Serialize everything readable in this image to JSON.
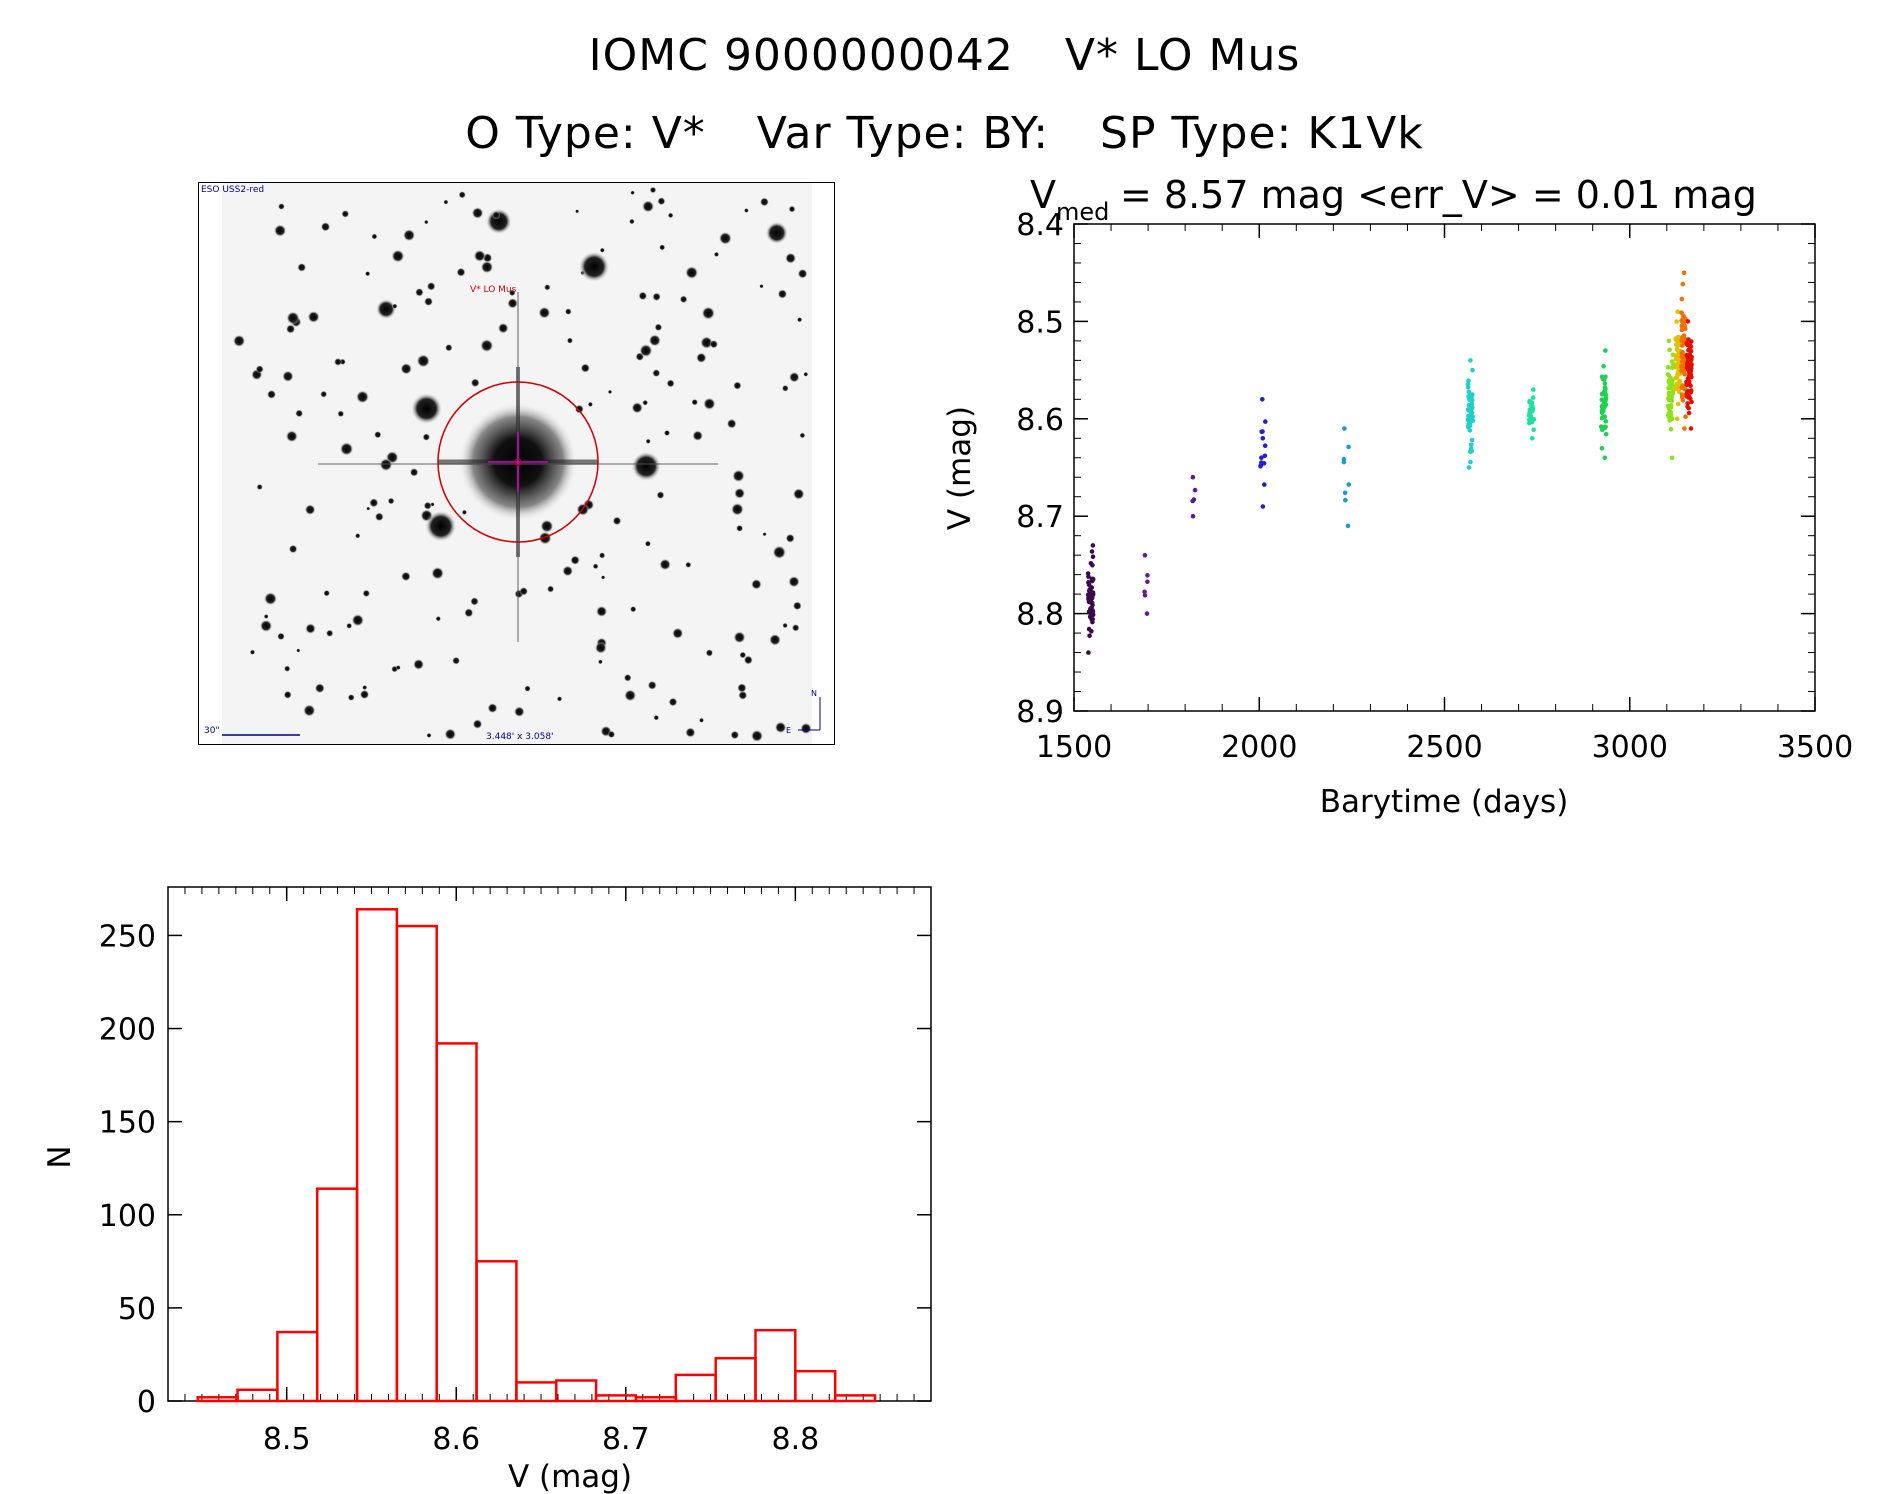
{
  "title": {
    "line1_id": "IOMC 9000000042",
    "line1_name": "V* LO Mus",
    "line2_otype": "O Type: V*",
    "line2_vartype": "Var Type: BY:",
    "line2_sptype": "SP Type: K1Vk"
  },
  "finder": {
    "survey_label": "ESO USS2-red",
    "target_label": "V* LO Mus",
    "scale_label": "30\"",
    "fov_label": "3.448' x 3.058'",
    "north_label": "N",
    "east_label": "E",
    "colors": {
      "circle": "#cc0000",
      "crosshair": "#cc00cc",
      "annotation": "#00008b"
    }
  },
  "chart_data": [
    {
      "type": "scatter",
      "title_v": "V",
      "title_sub": "med",
      "title_rest": "= 8.57 mag <err_V> = 0.01 mag",
      "xlabel": "Barytime (days)",
      "ylabel": "V (mag)",
      "xlim": [
        1500,
        3500
      ],
      "ylim": [
        8.9,
        8.4
      ],
      "y_inverted": true,
      "xticks": [
        "1500",
        "2000",
        "2500",
        "3000",
        "3500"
      ],
      "yticks": [
        "8.4",
        "8.5",
        "8.6",
        "8.7",
        "8.8",
        "8.9"
      ],
      "color_by": "time (rainbow: purple to red)",
      "clusters": [
        {
          "x": 1545,
          "y_min": 8.73,
          "y_max": 8.84,
          "n": 60,
          "color": "#3a0a4a"
        },
        {
          "x": 1695,
          "y_min": 8.74,
          "y_max": 8.8,
          "n": 6,
          "color": "#6a1a8a"
        },
        {
          "x": 1822,
          "y_min": 8.66,
          "y_max": 8.7,
          "n": 5,
          "color": "#5a1a9a"
        },
        {
          "x": 2010,
          "y_min": 8.58,
          "y_max": 8.69,
          "n": 14,
          "color": "#2020d0"
        },
        {
          "x": 2235,
          "y_min": 8.61,
          "y_max": 8.71,
          "n": 8,
          "color": "#1a9ad0"
        },
        {
          "x": 2570,
          "y_min": 8.54,
          "y_max": 8.65,
          "n": 50,
          "color": "#20d0c8"
        },
        {
          "x": 2735,
          "y_min": 8.57,
          "y_max": 8.62,
          "n": 30,
          "color": "#20e0a0"
        },
        {
          "x": 2930,
          "y_min": 8.53,
          "y_max": 8.64,
          "n": 50,
          "color": "#20d050"
        },
        {
          "x": 3110,
          "y_min": 8.52,
          "y_max": 8.64,
          "n": 50,
          "color": "#90e020"
        },
        {
          "x": 3130,
          "y_min": 8.49,
          "y_max": 8.6,
          "n": 50,
          "color": "#e0c000"
        },
        {
          "x": 3145,
          "y_min": 8.45,
          "y_max": 8.61,
          "n": 60,
          "color": "#f07000"
        },
        {
          "x": 3160,
          "y_min": 8.5,
          "y_max": 8.61,
          "n": 70,
          "color": "#e01000"
        }
      ]
    },
    {
      "type": "bar",
      "subtype": "histogram",
      "xlabel": "V (mag)",
      "ylabel": "N",
      "xlim": [
        8.43,
        8.88
      ],
      "ylim": [
        0,
        276
      ],
      "xticks": [
        "8.5",
        "8.6",
        "8.7",
        "8.8"
      ],
      "yticks": [
        "0",
        "50",
        "100",
        "150",
        "200",
        "250"
      ],
      "bin_width": 0.0235,
      "bin_start": 8.4475,
      "values": [
        2,
        6,
        37,
        114,
        264,
        255,
        192,
        75,
        10,
        11,
        3,
        2,
        14,
        23,
        38,
        16,
        3
      ],
      "color": "#ff0000"
    }
  ]
}
